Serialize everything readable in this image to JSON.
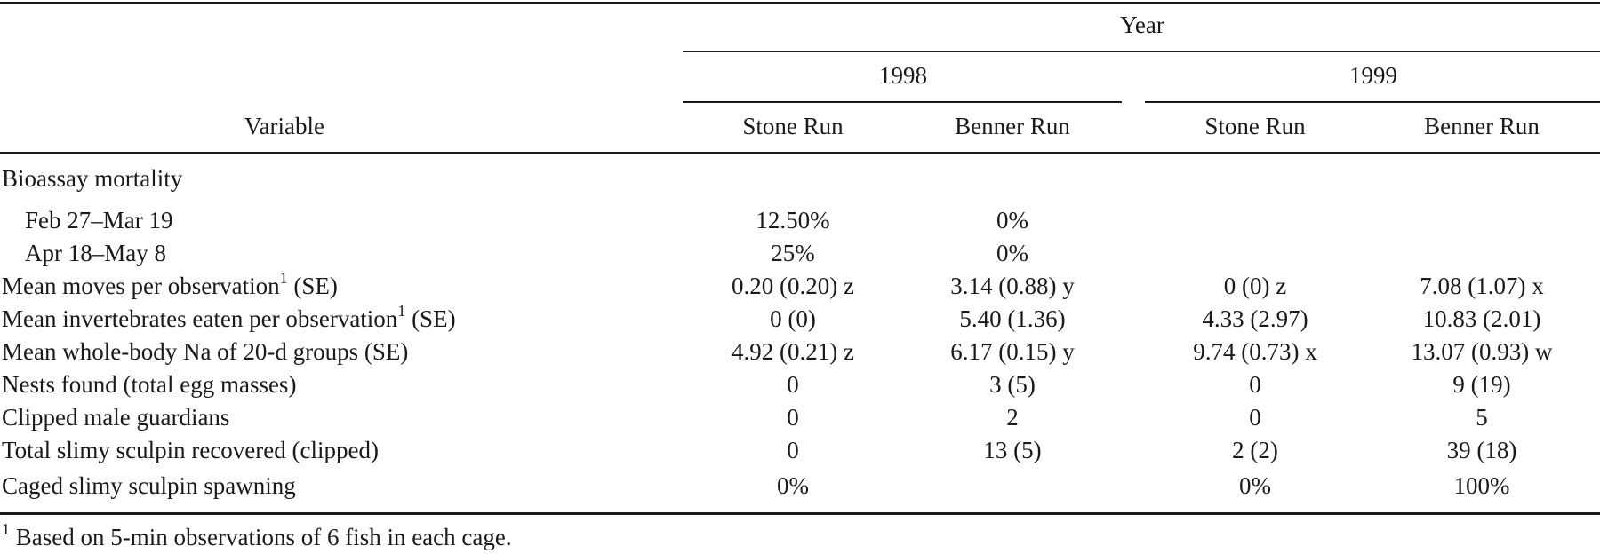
{
  "header": {
    "year": "Year",
    "variable": "Variable",
    "years": [
      "1998",
      "1999"
    ],
    "streams": [
      "Stone Run",
      "Benner Run",
      "Stone Run",
      "Benner Run"
    ]
  },
  "rows": [
    {
      "label": "Bioassay mortality",
      "note": "",
      "suffix": "",
      "values": [
        "",
        "",
        "",
        ""
      ]
    },
    {
      "label": "Feb 27–Mar 19",
      "note": "",
      "suffix": "",
      "values": [
        "12.50%",
        "0%",
        "",
        ""
      ]
    },
    {
      "label": "Apr 18–May 8",
      "note": "",
      "suffix": "",
      "values": [
        "25%",
        "0%",
        "",
        ""
      ]
    },
    {
      "label": "Mean moves per observation",
      "note": "1",
      "suffix": " (SE)",
      "values": [
        "0.20 (0.20) z",
        "3.14 (0.88) y",
        "0 (0) z",
        "7.08 (1.07) x"
      ]
    },
    {
      "label": "Mean invertebrates eaten per observation",
      "note": "1",
      "suffix": " (SE)",
      "values": [
        "0 (0)",
        "5.40 (1.36)",
        "4.33 (2.97)",
        "10.83 (2.01)"
      ]
    },
    {
      "label": "Mean whole-body Na of 20-d groups (SE)",
      "note": "",
      "suffix": "",
      "values": [
        "4.92 (0.21) z",
        "6.17 (0.15) y",
        "9.74 (0.73) x",
        "13.07 (0.93) w"
      ]
    },
    {
      "label": "Nests found (total egg masses)",
      "note": "",
      "suffix": "",
      "values": [
        "0",
        "3 (5)",
        "0",
        "9 (19)"
      ]
    },
    {
      "label": "Clipped male guardians",
      "note": "",
      "suffix": "",
      "values": [
        "0",
        "2",
        "0",
        "5"
      ]
    },
    {
      "label": "Total slimy sculpin recovered (clipped)",
      "note": "",
      "suffix": "",
      "values": [
        "0",
        "13 (5)",
        "2 (2)",
        "39 (18)"
      ]
    },
    {
      "label": "Caged slimy sculpin spawning",
      "note": "",
      "suffix": "",
      "values": [
        "0%",
        "",
        "0%",
        "100%"
      ]
    }
  ],
  "footnote": {
    "marker": "1",
    "text": " Based on 5-min observations of 6 fish in each cage."
  }
}
